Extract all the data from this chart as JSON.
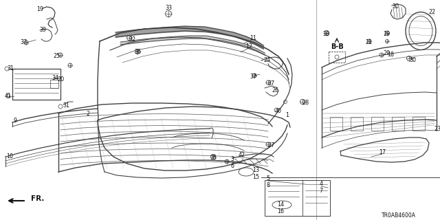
{
  "bg_color": "#ffffff",
  "line_color": "#404040",
  "text_color": "#111111",
  "diagram_code": "TR0AB4600A",
  "fig_w": 6.4,
  "fig_h": 3.2,
  "dpi": 100
}
